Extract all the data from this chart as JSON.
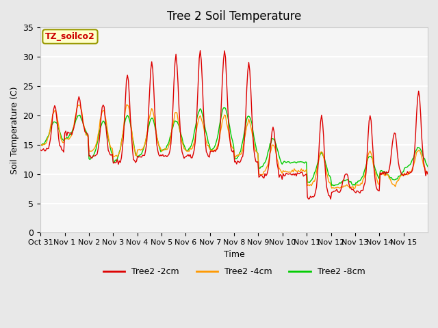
{
  "title": "Tree 2 Soil Temperature",
  "ylabel": "Soil Temperature (C)",
  "xlabel": "Time",
  "ylim": [
    0,
    35
  ],
  "annotation": "TZ_soilco2",
  "annotation_color": "#cc0000",
  "annotation_bg": "#ffffcc",
  "tick_labels": [
    "Oct 31",
    "Nov 1",
    "Nov 2",
    "Nov 3",
    "Nov 4",
    "Nov 5",
    "Nov 6",
    "Nov 7",
    "Nov 8",
    "Nov 9",
    "Nov 10",
    "Nov 11",
    "Nov 12",
    "Nov 13",
    "Nov 14",
    "Nov 15"
  ],
  "yticks": [
    0,
    5,
    10,
    15,
    20,
    25,
    30,
    35
  ],
  "colors": {
    "2cm": "#dd0000",
    "4cm": "#ff9900",
    "8cm": "#00cc00"
  },
  "legend_labels": [
    "Tree2 -2cm",
    "Tree2 -4cm",
    "Tree2 -8cm"
  ],
  "bg_color": "#e8e8e8",
  "plot_bg": "#f5f5f5",
  "grid_color": "#ffffff",
  "day_peaks_2cm": [
    22,
    23,
    22,
    27,
    29,
    30,
    31,
    31,
    29,
    18,
    10,
    20,
    10,
    20,
    17,
    24
  ],
  "day_troughs_2cm": [
    14,
    17,
    13,
    12,
    13,
    13,
    13,
    14,
    12,
    9.5,
    10,
    6,
    7,
    7,
    10,
    10
  ],
  "day_peaks_4cm": [
    21,
    22,
    21,
    22,
    21,
    20.5,
    20,
    20,
    19,
    15,
    10.5,
    14,
    8,
    14,
    8,
    14
  ],
  "day_troughs_4cm": [
    15,
    16,
    14,
    13,
    14,
    14,
    14,
    14,
    13,
    10,
    10.5,
    8,
    7.5,
    8,
    10,
    10
  ],
  "day_peaks_8cm": [
    19,
    20,
    19,
    20,
    19.5,
    19,
    21,
    21.5,
    20,
    16,
    12,
    13.5,
    9,
    13,
    9,
    14.5
  ],
  "day_troughs_8cm": [
    15,
    16,
    12.5,
    12,
    13,
    14,
    14,
    14,
    12.5,
    11,
    12,
    8.5,
    8,
    8.5,
    10.5,
    11
  ]
}
